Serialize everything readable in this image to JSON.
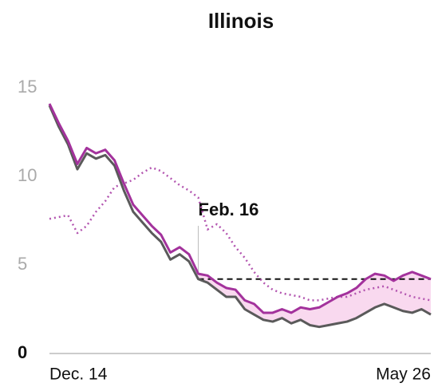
{
  "chart_data": {
    "type": "line",
    "title": "Illinois",
    "categories": [
      "Dec. 14",
      null,
      null,
      null,
      null,
      null,
      null,
      null,
      null,
      null,
      null,
      null,
      null,
      null,
      null,
      null,
      null,
      null,
      null,
      null,
      null,
      null,
      null,
      null,
      null,
      null,
      null,
      null,
      null,
      null,
      null,
      null,
      null,
      null,
      null,
      null,
      null,
      null,
      null,
      null,
      null,
      "May 26"
    ],
    "series": [
      {
        "color": "#5a5a5a",
        "style": "solid",
        "values": [
          14.0,
          12.8,
          11.8,
          10.4,
          11.3,
          11.0,
          11.2,
          10.6,
          9.2,
          8.0,
          7.4,
          6.8,
          6.3,
          5.3,
          5.6,
          5.2,
          4.2,
          4.0,
          3.6,
          3.2,
          3.2,
          2.5,
          2.2,
          1.9,
          1.8,
          2.0,
          1.7,
          1.9,
          1.6,
          1.5,
          1.6,
          1.7,
          1.8,
          2.0,
          2.3,
          2.6,
          2.8,
          2.6,
          2.4,
          2.3,
          2.5,
          2.2
        ]
      },
      {
        "color": "#a3329c",
        "style": "solid",
        "values": [
          14.1,
          13.0,
          12.0,
          10.7,
          11.6,
          11.3,
          11.5,
          10.9,
          9.6,
          8.4,
          7.8,
          7.2,
          6.7,
          5.7,
          6.0,
          5.6,
          4.5,
          4.4,
          4.0,
          3.7,
          3.6,
          3.0,
          2.8,
          2.3,
          2.3,
          2.5,
          2.3,
          2.6,
          2.5,
          2.6,
          2.9,
          3.2,
          3.4,
          3.7,
          4.2,
          4.5,
          4.4,
          4.1,
          4.4,
          4.6,
          4.4,
          4.2
        ]
      },
      {
        "color": "#b355b0",
        "style": "dotted",
        "values": [
          7.6,
          7.7,
          7.8,
          6.8,
          7.2,
          8.0,
          8.6,
          9.4,
          9.6,
          9.8,
          10.2,
          10.5,
          10.3,
          9.9,
          9.5,
          9.2,
          8.8,
          7.0,
          7.3,
          6.8,
          6.0,
          5.4,
          4.6,
          4.0,
          3.6,
          3.4,
          3.3,
          3.2,
          3.0,
          3.0,
          3.1,
          3.2,
          3.2,
          3.4,
          3.6,
          3.7,
          3.8,
          3.6,
          3.4,
          3.2,
          3.1,
          3.0
        ]
      }
    ],
    "annotation": {
      "text": "Feb. 16",
      "index": 16
    },
    "reference": {
      "value": 4.2
    },
    "shade_color": "#f9d9ef",
    "ylim": [
      0,
      15
    ],
    "yticks": [
      0,
      5,
      10,
      15
    ]
  }
}
